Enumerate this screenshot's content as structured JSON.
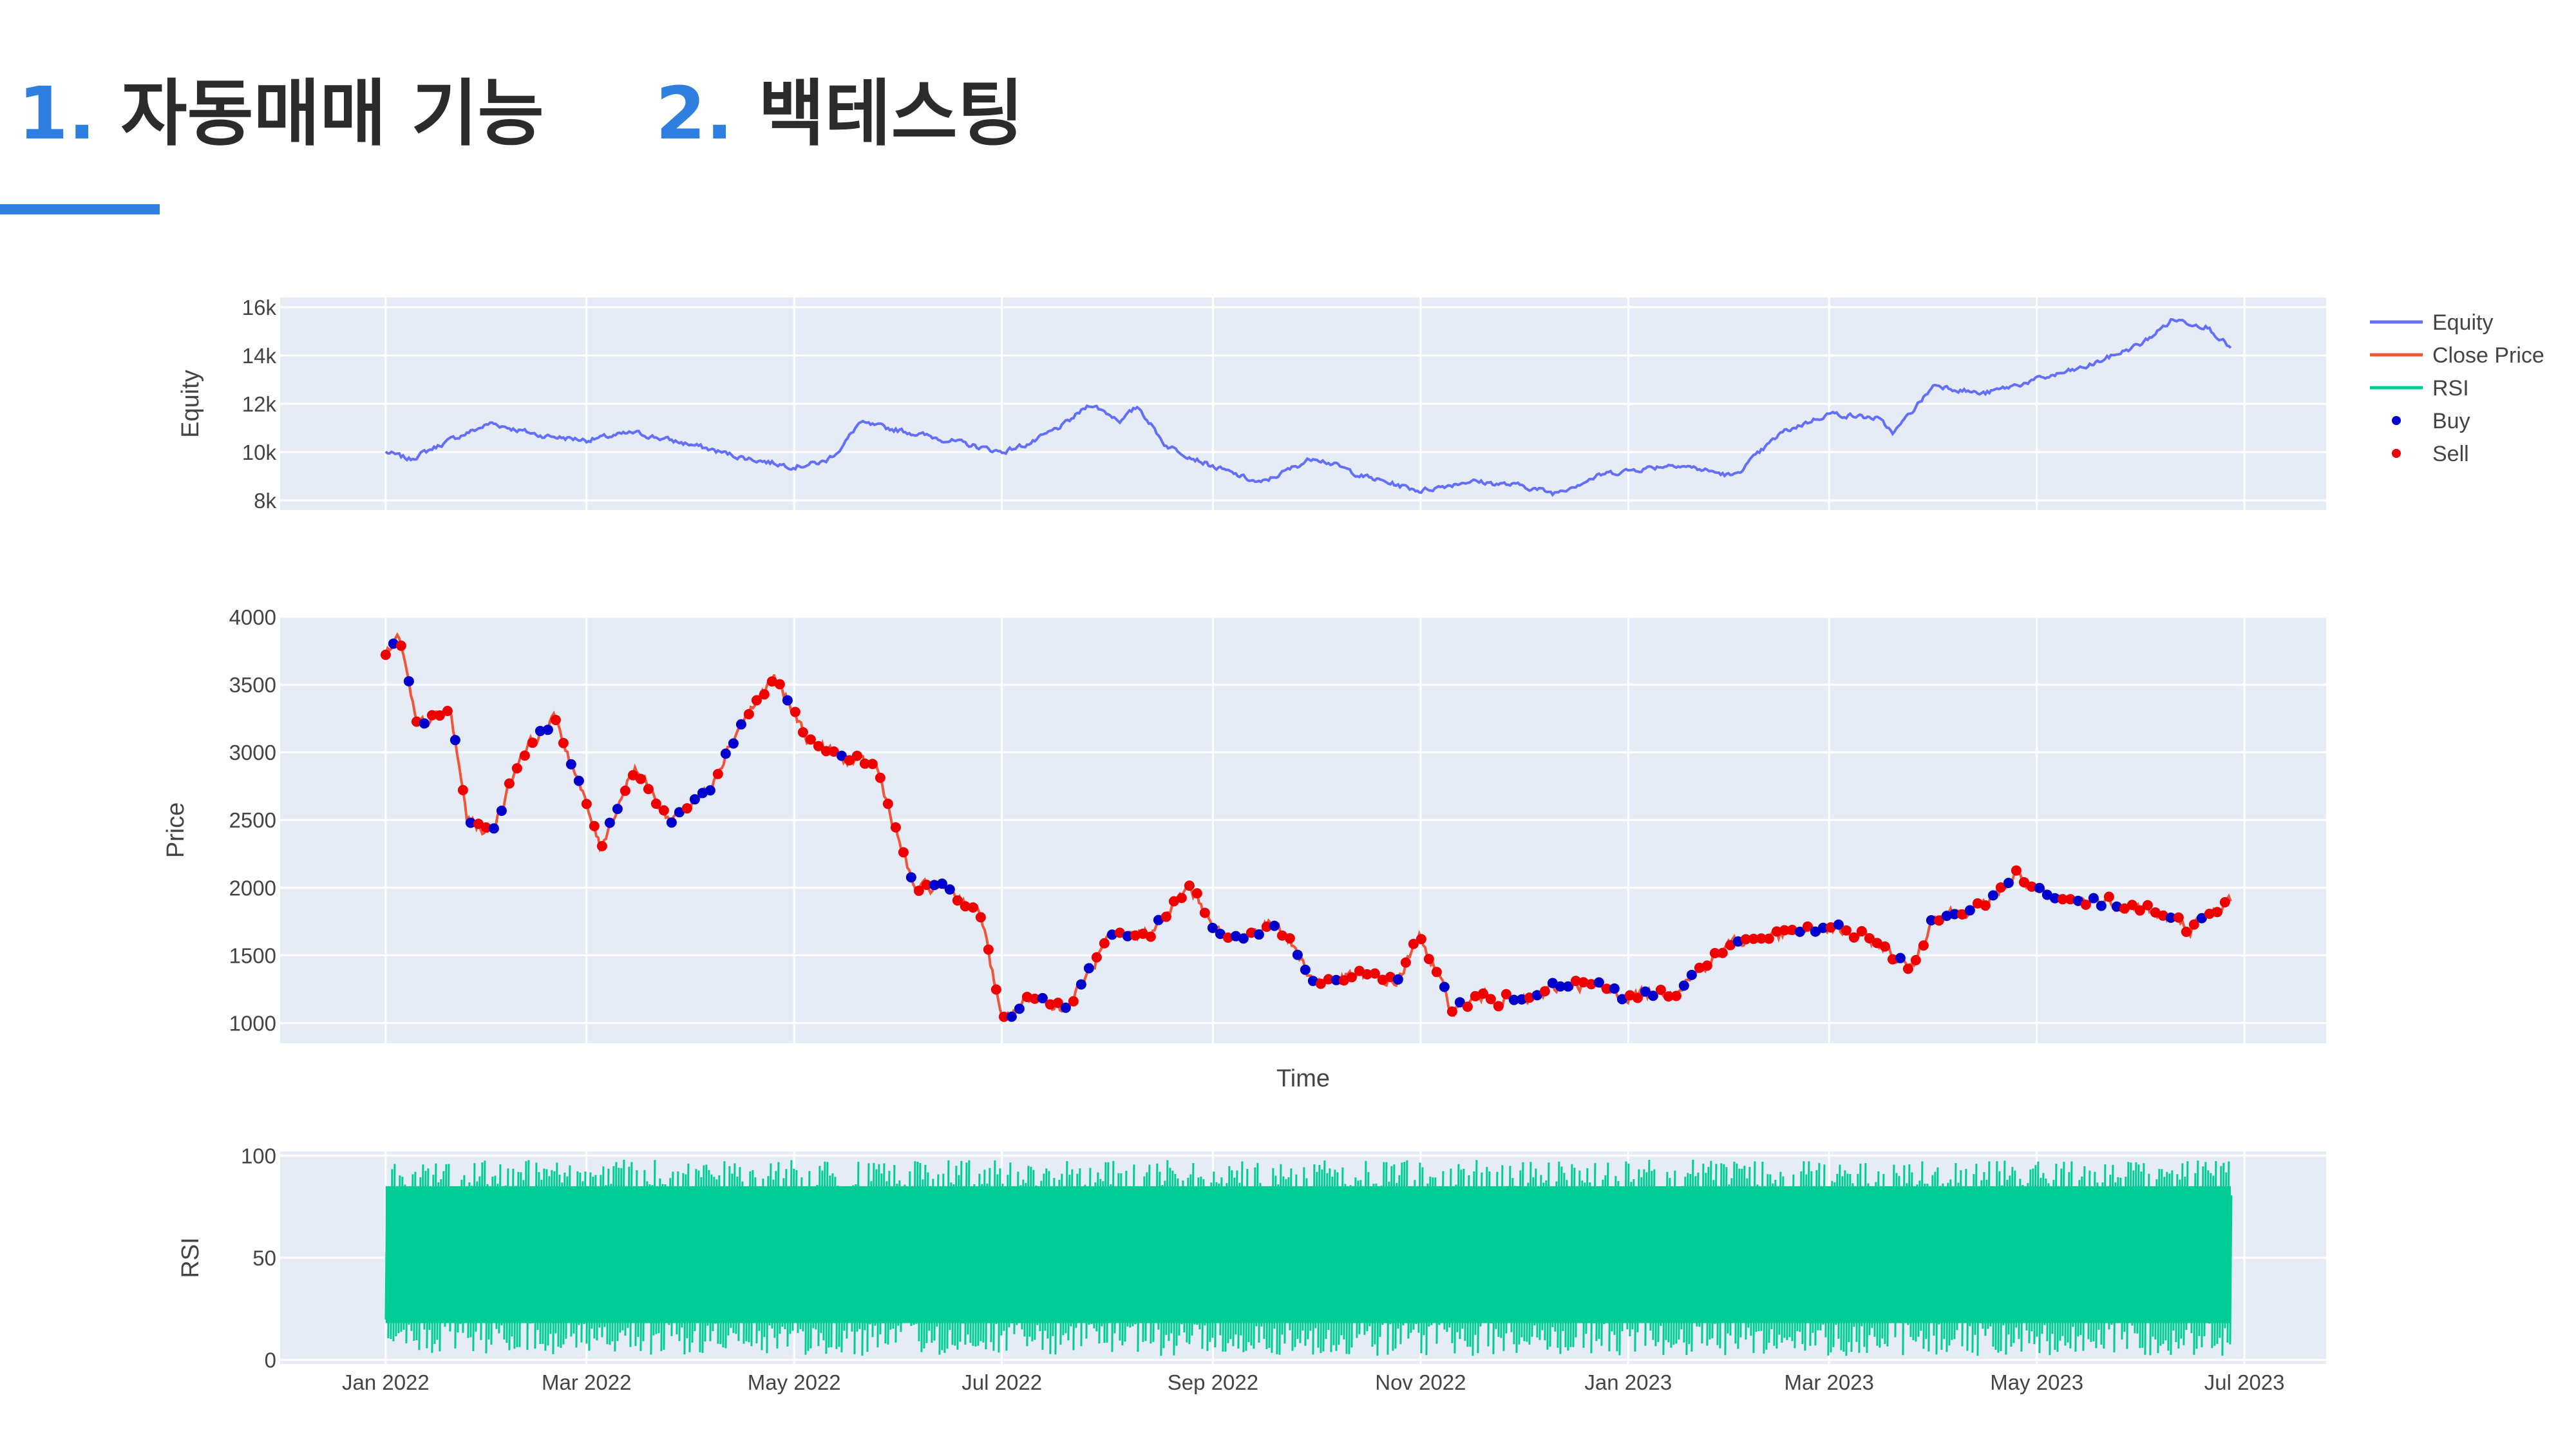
{
  "headings": [
    {
      "number": "1.",
      "text": "자동매매 기능"
    },
    {
      "number": "2.",
      "text": "백테스팅"
    }
  ],
  "colors": {
    "accent": "#2f7fe0",
    "panel_bg": "#e5ecf6",
    "equity": "#636efa",
    "close_price": "#ef553b",
    "rsi": "#00cc96",
    "buy": "#0000cc",
    "sell": "#ee0000"
  },
  "chart_data": {
    "type": "line",
    "xlabel": "Time",
    "x_range": [
      "2021-12-01",
      "2023-07-25"
    ],
    "x_ticks": [
      "Jan 2022",
      "Mar 2022",
      "May 2022",
      "Jul 2022",
      "Sep 2022",
      "Nov 2022",
      "Jan 2023",
      "Mar 2023",
      "May 2023",
      "Jul 2023"
    ],
    "x_tick_dates": [
      "2022-01-01",
      "2022-03-01",
      "2022-05-01",
      "2022-07-01",
      "2022-09-01",
      "2022-11-01",
      "2023-01-01",
      "2023-03-01",
      "2023-05-01",
      "2023-07-01"
    ],
    "legend": {
      "placement": "right",
      "items": [
        {
          "name": "Equity",
          "symbol": "line",
          "color": "#636efa"
        },
        {
          "name": "Close Price",
          "symbol": "line",
          "color": "#ef553b"
        },
        {
          "name": "RSI",
          "symbol": "line",
          "color": "#00cc96"
        },
        {
          "name": "Buy",
          "symbol": "dot",
          "color": "#0000cc"
        },
        {
          "name": "Sell",
          "symbol": "dot",
          "color": "#ee0000"
        }
      ]
    },
    "panels": [
      {
        "id": "equity",
        "ylabel": "Equity",
        "y_range": [
          7600,
          16400
        ],
        "y_ticks": [
          8000,
          10000,
          12000,
          14000,
          16000
        ],
        "y_tick_labels": [
          "8k",
          "10k",
          "12k",
          "14k",
          "16k"
        ],
        "series": [
          {
            "name": "Equity",
            "color": "#636efa",
            "points": [
              [
                "2022-01-01",
                10000
              ],
              [
                "2022-01-08",
                9700
              ],
              [
                "2022-01-20",
                10500
              ],
              [
                "2022-02-01",
                11200
              ],
              [
                "2022-02-15",
                10700
              ],
              [
                "2022-03-01",
                10500
              ],
              [
                "2022-03-15",
                10800
              ],
              [
                "2022-04-01",
                10300
              ],
              [
                "2022-04-15",
                9800
              ],
              [
                "2022-05-01",
                9400
              ],
              [
                "2022-05-10",
                9600
              ],
              [
                "2022-05-15",
                10200
              ],
              [
                "2022-05-20",
                11200
              ],
              [
                "2022-06-01",
                10900
              ],
              [
                "2022-06-15",
                10500
              ],
              [
                "2022-07-01",
                10000
              ],
              [
                "2022-07-10",
                10400
              ],
              [
                "2022-07-20",
                11200
              ],
              [
                "2022-07-27",
                12000
              ],
              [
                "2022-08-05",
                11300
              ],
              [
                "2022-08-10",
                11900
              ],
              [
                "2022-08-18",
                10300
              ],
              [
                "2022-09-01",
                9400
              ],
              [
                "2022-09-15",
                8700
              ],
              [
                "2022-10-01",
                9800
              ],
              [
                "2022-10-15",
                9000
              ],
              [
                "2022-11-01",
                8400
              ],
              [
                "2022-11-15",
                8800
              ],
              [
                "2022-12-01",
                8600
              ],
              [
                "2022-12-10",
                8300
              ],
              [
                "2022-12-25",
                9100
              ],
              [
                "2023-01-15",
                9500
              ],
              [
                "2023-02-01",
                9000
              ],
              [
                "2023-02-15",
                10800
              ],
              [
                "2023-03-01",
                11600
              ],
              [
                "2023-03-15",
                11400
              ],
              [
                "2023-03-20",
                10800
              ],
              [
                "2023-04-01",
                12800
              ],
              [
                "2023-04-15",
                12400
              ],
              [
                "2023-05-01",
                13000
              ],
              [
                "2023-05-15",
                13500
              ],
              [
                "2023-06-01",
                14500
              ],
              [
                "2023-06-10",
                15500
              ],
              [
                "2023-06-20",
                15200
              ],
              [
                "2023-06-27",
                14300
              ]
            ]
          }
        ]
      },
      {
        "id": "price",
        "ylabel": "Price",
        "y_range": [
          850,
          4000
        ],
        "y_ticks": [
          1000,
          1500,
          2000,
          2500,
          3000,
          3500,
          4000
        ],
        "y_tick_labels": [
          "1000",
          "1500",
          "2000",
          "2500",
          "3000",
          "3500",
          "4000"
        ],
        "series": [
          {
            "name": "Close Price",
            "color": "#ef553b",
            "points": [
              [
                "2022-01-01",
                3700
              ],
              [
                "2022-01-05",
                3850
              ],
              [
                "2022-01-10",
                3200
              ],
              [
                "2022-01-20",
                3300
              ],
              [
                "2022-01-25",
                2500
              ],
              [
                "2022-02-01",
                2400
              ],
              [
                "2022-02-10",
                3000
              ],
              [
                "2022-02-20",
                3250
              ],
              [
                "2022-03-01",
                2600
              ],
              [
                "2022-03-05",
                2300
              ],
              [
                "2022-03-15",
                2900
              ],
              [
                "2022-03-25",
                2500
              ],
              [
                "2022-04-05",
                2700
              ],
              [
                "2022-04-15",
                3200
              ],
              [
                "2022-04-25",
                3550
              ],
              [
                "2022-05-05",
                3100
              ],
              [
                "2022-05-15",
                2950
              ],
              [
                "2022-05-25",
                2900
              ],
              [
                "2022-06-05",
                2000
              ],
              [
                "2022-06-15",
                2000
              ],
              [
                "2022-06-25",
                1800
              ],
              [
                "2022-07-01",
                1000
              ],
              [
                "2022-07-10",
                1200
              ],
              [
                "2022-07-20",
                1100
              ],
              [
                "2022-08-01",
                1600
              ],
              [
                "2022-08-15",
                1700
              ],
              [
                "2022-08-25",
                2000
              ],
              [
                "2022-09-05",
                1600
              ],
              [
                "2022-09-20",
                1750
              ],
              [
                "2022-10-01",
                1300
              ],
              [
                "2022-10-15",
                1350
              ],
              [
                "2022-10-25",
                1300
              ],
              [
                "2022-11-01",
                1650
              ],
              [
                "2022-11-10",
                1100
              ],
              [
                "2022-11-20",
                1200
              ],
              [
                "2022-12-01",
                1150
              ],
              [
                "2022-12-15",
                1300
              ],
              [
                "2023-01-01",
                1200
              ],
              [
                "2023-01-15",
                1250
              ],
              [
                "2023-02-01",
                1600
              ],
              [
                "2023-02-15",
                1650
              ],
              [
                "2023-03-01",
                1700
              ],
              [
                "2023-03-15",
                1600
              ],
              [
                "2023-03-25",
                1400
              ],
              [
                "2023-04-01",
                1800
              ],
              [
                "2023-04-15",
                1850
              ],
              [
                "2023-04-25",
                2100
              ],
              [
                "2023-05-05",
                1900
              ],
              [
                "2023-05-20",
                1900
              ],
              [
                "2023-06-01",
                1850
              ],
              [
                "2023-06-15",
                1700
              ],
              [
                "2023-06-27",
                1900
              ]
            ]
          }
        ]
      },
      {
        "id": "rsi",
        "ylabel": "RSI",
        "y_range": [
          -2,
          102
        ],
        "y_ticks": [
          0,
          50,
          100
        ],
        "y_tick_labels": [
          "0",
          "50",
          "100"
        ],
        "series": [
          {
            "name": "RSI",
            "color": "#00cc96",
            "x_start": "2022-01-01",
            "x_end": "2023-06-27",
            "y_min": 2,
            "y_max": 98
          }
        ]
      }
    ]
  }
}
